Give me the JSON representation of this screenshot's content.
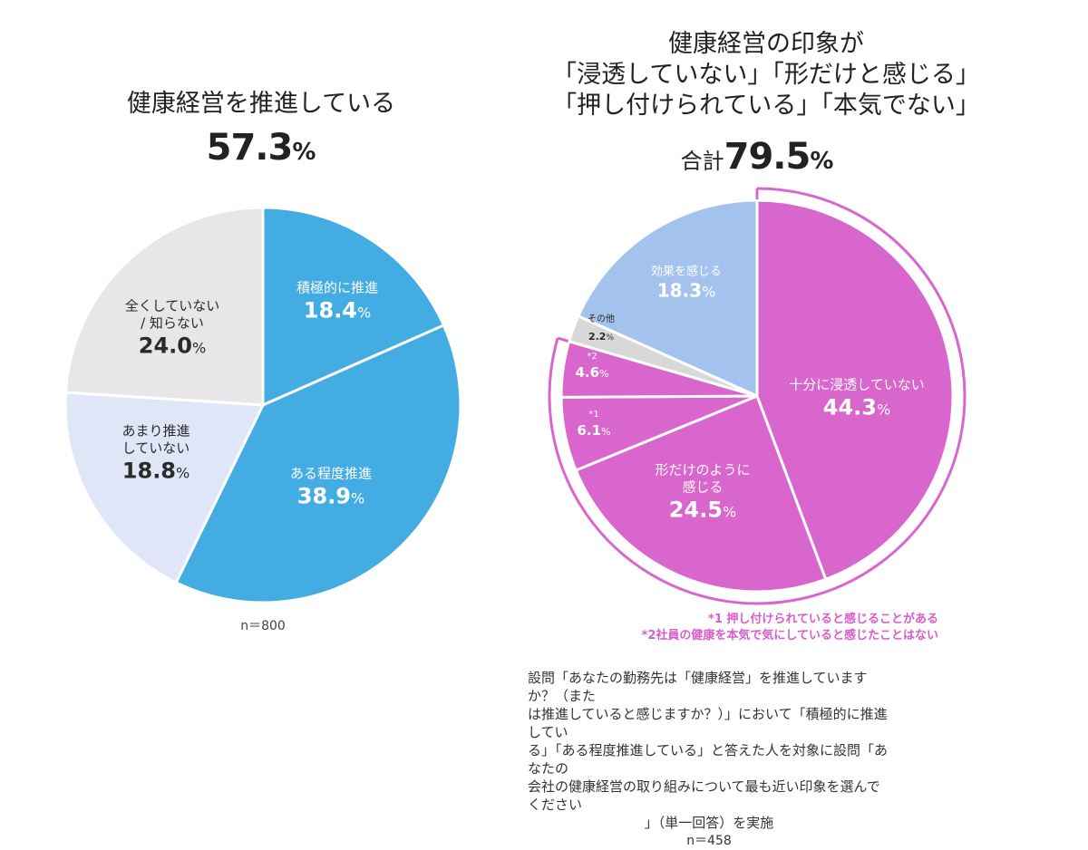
{
  "left": {
    "title": "健康経営を推進している",
    "headline_value": "57.3",
    "headline_unit": "%",
    "n_label": "n＝800"
  },
  "right": {
    "title_lines": [
      "健康経営の印象が",
      "「浸透していない」「形だけと感じる」",
      "「押し付けられている」「本気でない」"
    ],
    "total_prefix": "合計",
    "headline_value": "79.5",
    "headline_unit": "%",
    "footnotes": [
      "*1 押し付けられていると感じることがある",
      "*2社員の健康を本気で気にしていると感じたことはない"
    ],
    "question_lines": [
      "設問「あなたの勤務先は「健康経営」を推進していますか？（また",
      "は推進していると感じますか？）」において「積極的に推進してい",
      "る」「ある程度推進している」と答えた人を対象に設問「あなたの",
      "会社の健康経営の取り組みについて最も近い印象を選んでください",
      "」（単一回答）を実施"
    ],
    "n_label": "n＝458"
  },
  "chart_data": [
    {
      "type": "pie",
      "title": "健康経営を推進している 57.3%",
      "start": "top",
      "direction": "clockwise",
      "slices": [
        {
          "label": "積極的に推進",
          "value": 18.4,
          "display": "18.4",
          "color": "#43ade3"
        },
        {
          "label": "ある程度推進",
          "value": 38.9,
          "display": "38.9",
          "color": "#43ade3"
        },
        {
          "label": "あまり推進していない",
          "label_lines": [
            "あまり推進",
            "していない"
          ],
          "value": 18.8,
          "display": "18.8",
          "color": "#dfe6f7"
        },
        {
          "label": "全くしていない / 知らない",
          "label_lines": [
            "全くしていない",
            "/ 知らない"
          ],
          "value": 24.0,
          "display": "24.0",
          "color": "#e8e6e7"
        }
      ],
      "unit": "%"
    },
    {
      "type": "pie",
      "title": "合計79.5%",
      "start": "top",
      "direction": "clockwise",
      "highlight_total": 79.5,
      "highlight_color": "#d966cc",
      "slices": [
        {
          "label": "十分に浸透していない",
          "value": 44.3,
          "display": "44.3",
          "color": "#d966cc"
        },
        {
          "label": "形だけのように感じる",
          "label_lines": [
            "形だけのように",
            "感じる"
          ],
          "value": 24.5,
          "display": "24.5",
          "color": "#d966cc"
        },
        {
          "label": "*1",
          "value": 6.1,
          "display": "6.1",
          "color": "#d966cc"
        },
        {
          "label": "*2",
          "value": 4.6,
          "display": "4.6",
          "color": "#d966cc"
        },
        {
          "label": "その他",
          "value": 2.2,
          "display": "2.2",
          "color": "#d8d8d8"
        },
        {
          "label": "効果を感じる",
          "value": 18.3,
          "display": "18.3",
          "color": "#a3c3ee"
        }
      ],
      "unit": "%"
    }
  ]
}
